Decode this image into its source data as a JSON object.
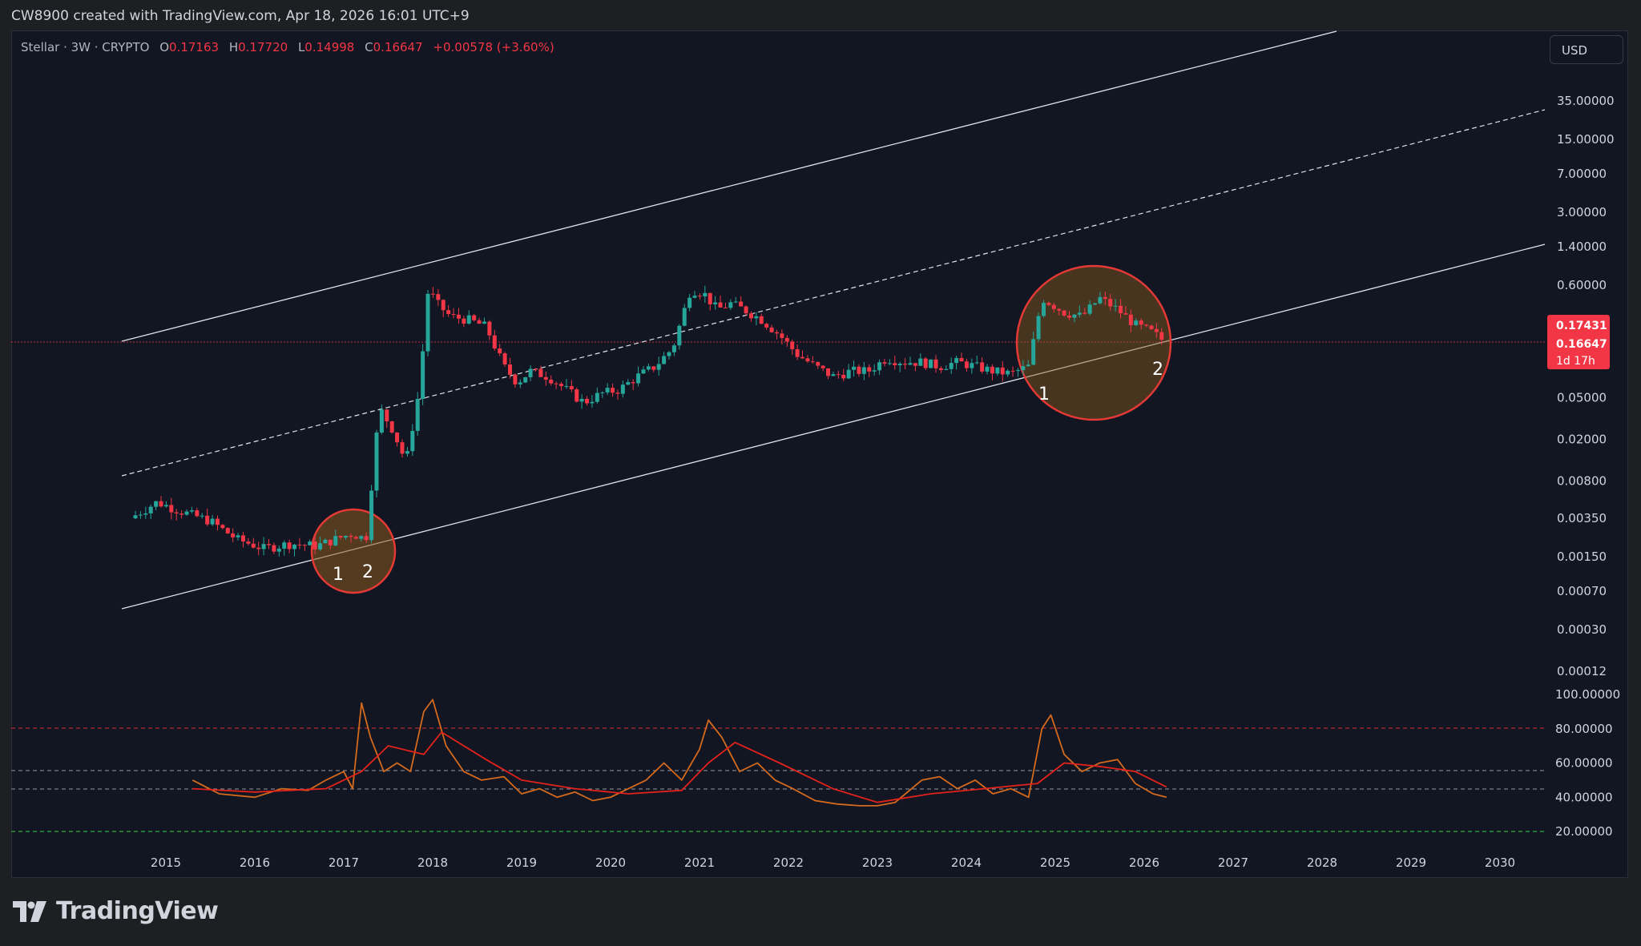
{
  "header": {
    "credit": "CW8900 created with TradingView.com, Apr 18, 2026 16:01 UTC+9"
  },
  "legend": {
    "symbol": "Stellar · 3W · CRYPTO",
    "o_label": "O",
    "o_value": "0.17163",
    "h_label": "H",
    "h_value": "0.17720",
    "l_label": "L",
    "l_value": "0.14998",
    "c_label": "C",
    "c_value": "0.16647",
    "change": "+0.00578 (+3.60%)"
  },
  "currency_button": "USD",
  "price_axis": {
    "labels": [
      "35.00000",
      "15.00000",
      "7.00000",
      "3.00000",
      "1.40000",
      "0.60000",
      "0.05000",
      "0.02000",
      "0.00800",
      "0.00350",
      "0.00150",
      "0.00070",
      "0.00030",
      "0.00012"
    ],
    "price_tags": [
      "0.17431",
      "0.16647",
      "1d 17h"
    ]
  },
  "indicator_axis": {
    "labels": [
      "100.00000",
      "80.00000",
      "60.00000",
      "40.00000",
      "20.00000"
    ]
  },
  "time_axis": {
    "labels": [
      "2015",
      "2016",
      "2017",
      "2018",
      "2019",
      "2020",
      "2021",
      "2022",
      "2023",
      "2024",
      "2025",
      "2026",
      "2027",
      "2028",
      "2029",
      "2030"
    ]
  },
  "annotations": {
    "circle1_labels": [
      "1",
      "2"
    ],
    "circle2_labels": [
      "1",
      "2"
    ]
  },
  "colors": {
    "up": "#26a69a",
    "down": "#f23645",
    "background": "#121622",
    "channel_line": "#e0e3eb",
    "circle_stroke": "#e53935",
    "circle_fill": "#8a5a1e",
    "oscillator": "#d46a1e",
    "oscillator_signal": "#e3221c",
    "overbought_line": "#b22833",
    "oversold_line": "#2fae3b",
    "mid_lines": "#9598a1"
  },
  "chart_data": [
    {
      "type": "candlestick",
      "title": "Stellar · 3W · CRYPTO",
      "yscale": "log",
      "x_ticks": [
        "2015",
        "2016",
        "2017",
        "2018",
        "2019",
        "2020",
        "2021",
        "2022",
        "2023",
        "2024",
        "2025",
        "2026",
        "2027",
        "2028",
        "2029",
        "2030"
      ],
      "y_ticks": [
        35,
        15,
        7,
        3,
        1.4,
        0.6,
        0.05,
        0.02,
        0.008,
        0.0035,
        0.0015,
        0.0007,
        0.0003,
        0.00012
      ],
      "ylim": [
        8e-05,
        70
      ],
      "last_close": 0.16647,
      "price_line": 0.16647,
      "series": [
        {
          "x": [
            2014.6,
            2014.9,
            2015.2,
            2015.5,
            2015.8,
            2016.1,
            2016.4,
            2016.7,
            2016.9,
            2017.1,
            2017.25,
            2017.4,
            2017.55,
            2017.7,
            2017.85,
            2017.95,
            2018.05,
            2018.2,
            2018.4,
            2018.6,
            2018.8,
            2018.95,
            2019.1,
            2019.3,
            2019.5,
            2019.7,
            2019.9,
            2020.1,
            2020.3,
            2020.5,
            2020.7,
            2020.9,
            2021.05,
            2021.2,
            2021.35,
            2021.5,
            2021.7,
            2021.9,
            2022.1,
            2022.3,
            2022.5,
            2022.7,
            2022.9,
            2023.1,
            2023.3,
            2023.5,
            2023.7,
            2023.9,
            2024.1,
            2024.3,
            2024.5,
            2024.7,
            2024.85,
            2024.95,
            2025.1,
            2025.3,
            2025.5,
            2025.7,
            2025.9,
            2026.1,
            2026.25
          ],
          "close": [
            0.0035,
            0.005,
            0.004,
            0.0033,
            0.0022,
            0.0018,
            0.002,
            0.0019,
            0.0022,
            0.0025,
            0.0022,
            0.04,
            0.025,
            0.012,
            0.06,
            0.55,
            0.4,
            0.3,
            0.28,
            0.24,
            0.1,
            0.07,
            0.09,
            0.08,
            0.06,
            0.045,
            0.055,
            0.06,
            0.08,
            0.1,
            0.15,
            0.55,
            0.5,
            0.35,
            0.4,
            0.35,
            0.28,
            0.2,
            0.13,
            0.1,
            0.08,
            0.09,
            0.09,
            0.12,
            0.11,
            0.11,
            0.1,
            0.11,
            0.1,
            0.09,
            0.085,
            0.1,
            0.45,
            0.4,
            0.33,
            0.3,
            0.45,
            0.35,
            0.25,
            0.21,
            0.16647
          ]
        }
      ]
    },
    {
      "type": "line",
      "title": "",
      "ylim": [
        10,
        100
      ],
      "y_ticks": [
        100,
        80,
        60,
        40,
        20
      ],
      "levels": [
        80,
        55,
        45,
        20
      ],
      "series": [
        {
          "x": [
            2015.3,
            2015.6,
            2016.0,
            2016.3,
            2016.6,
            2016.8,
            2017.0,
            2017.1,
            2017.2,
            2017.3,
            2017.45,
            2017.6,
            2017.75,
            2017.9,
            2018.0,
            2018.15,
            2018.35,
            2018.55,
            2018.8,
            2019.0,
            2019.2,
            2019.4,
            2019.6,
            2019.8,
            2020.0,
            2020.2,
            2020.4,
            2020.6,
            2020.8,
            2021.0,
            2021.1,
            2021.25,
            2021.45,
            2021.65,
            2021.85,
            2022.05,
            2022.3,
            2022.55,
            2022.8,
            2023.0,
            2023.2,
            2023.5,
            2023.7,
            2023.9,
            2024.1,
            2024.3,
            2024.5,
            2024.7,
            2024.85,
            2024.95,
            2025.1,
            2025.3,
            2025.5,
            2025.7,
            2025.9,
            2026.1,
            2026.25
          ],
          "values": [
            50,
            42,
            40,
            45,
            44,
            50,
            55,
            45,
            95,
            75,
            55,
            60,
            55,
            90,
            97,
            70,
            55,
            50,
            52,
            42,
            45,
            40,
            43,
            38,
            40,
            45,
            50,
            60,
            50,
            68,
            85,
            75,
            55,
            60,
            50,
            45,
            38,
            36,
            35,
            35,
            37,
            50,
            52,
            45,
            50,
            42,
            45,
            40,
            80,
            88,
            65,
            55,
            60,
            62,
            48,
            42,
            40
          ]
        },
        {
          "x": [
            2015.3,
            2016.0,
            2016.8,
            2017.2,
            2017.5,
            2017.9,
            2018.1,
            2018.6,
            2019.0,
            2019.6,
            2020.2,
            2020.8,
            2021.1,
            2021.4,
            2021.9,
            2022.5,
            2023.0,
            2023.6,
            2024.2,
            2024.8,
            2025.1,
            2025.5,
            2025.9,
            2026.25
          ],
          "values": [
            45,
            43,
            45,
            55,
            70,
            65,
            78,
            62,
            50,
            45,
            42,
            44,
            60,
            72,
            60,
            45,
            37,
            42,
            45,
            48,
            60,
            58,
            55,
            46
          ]
        }
      ]
    }
  ]
}
